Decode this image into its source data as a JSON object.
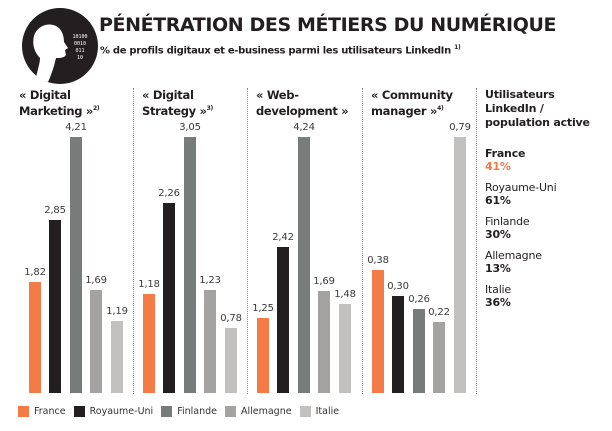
{
  "header": {
    "title": "PÉNÉTRATION DES MÉTIERS DU NUMÉRIQUE",
    "subtitle": "% de profils digitaux et e-business parmi les utilisateurs LinkedIn",
    "subtitle_note": "1)",
    "logo_icon": "person-binary-head-icon",
    "logo_digits": [
      "10100",
      "0010",
      "011",
      "10"
    ]
  },
  "colors": {
    "France": "#f47b46",
    "Royaume-Uni": "#231f20",
    "Finlande": "#777c7b",
    "Allemagne": "#a4a3a1",
    "Italie": "#c2c1bf"
  },
  "chart_data": {
    "type": "bar",
    "title": "PÉNÉTRATION DES MÉTIERS DU NUMÉRIQUE",
    "subtitle": "% de profils digitaux et e-business parmi les utilisateurs LinkedIn 1)",
    "xlabel": "",
    "ylabel": "",
    "grid": false,
    "legend_position": "bottom-left",
    "scale_note": "each panel scaled independently to its own maximum",
    "countries": [
      "France",
      "Royaume-Uni",
      "Finlande",
      "Allemagne",
      "Italie"
    ],
    "panels": [
      {
        "title_line1": "« Digital",
        "title_line2": "Marketing »",
        "note": "2)",
        "values": [
          1.82,
          2.85,
          4.21,
          1.69,
          1.19
        ],
        "labels": [
          "1,82",
          "2,85",
          "4,21",
          "1,69",
          "1,19"
        ]
      },
      {
        "title_line1": "« Digital",
        "title_line2": "Strategy »",
        "note": "3)",
        "values": [
          1.18,
          2.26,
          3.05,
          1.23,
          0.78
        ],
        "labels": [
          "1,18",
          "2,26",
          "3,05",
          "1,23",
          "0,78"
        ]
      },
      {
        "title_line1": "« Web-",
        "title_line2": "development »",
        "note": "",
        "values": [
          1.25,
          2.42,
          4.24,
          1.69,
          1.48
        ],
        "labels": [
          "1,25",
          "2,42",
          "4,24",
          "1,69",
          "1,48"
        ]
      },
      {
        "title_line1": "« Community",
        "title_line2": "manager »",
        "note": "4)",
        "values": [
          0.38,
          0.3,
          0.26,
          0.22,
          0.79
        ],
        "labels": [
          "0,38",
          "0,30",
          "0,26",
          "0,22",
          "0,79"
        ]
      }
    ]
  },
  "sidebar": {
    "title_line1": "Utilisateurs",
    "title_line2": "LinkedIn /",
    "title_line3": "population active",
    "items": [
      {
        "country": "France",
        "value": "41%",
        "color": "#f47b46"
      },
      {
        "country": "Royaume-Uni",
        "value": "61%",
        "color": "#231f20"
      },
      {
        "country": "Finlande",
        "value": "30%",
        "color": "#231f20"
      },
      {
        "country": "Allemagne",
        "value": "13%",
        "color": "#231f20"
      },
      {
        "country": "Italie",
        "value": "36%",
        "color": "#231f20"
      }
    ]
  },
  "legend": [
    {
      "label": "France"
    },
    {
      "label": "Royaume-Uni"
    },
    {
      "label": "Finlande"
    },
    {
      "label": "Allemagne"
    },
    {
      "label": "Italie"
    }
  ]
}
